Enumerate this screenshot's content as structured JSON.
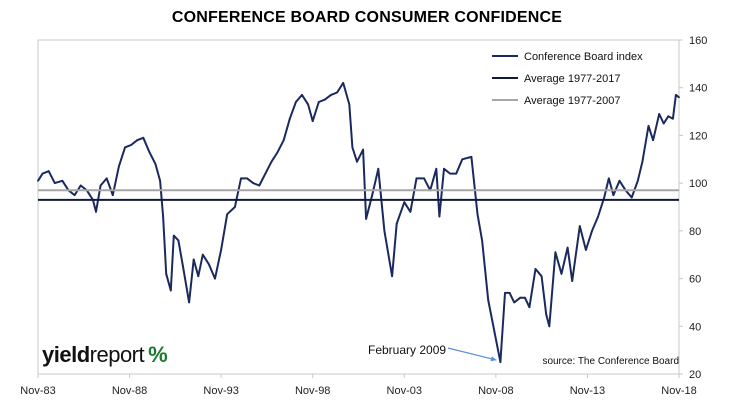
{
  "chart_data": {
    "type": "line",
    "title": "CONFERENCE BOARD CONSUMER CONFIDENCE",
    "ylim": [
      20,
      160
    ],
    "yticks": [
      20,
      40,
      60,
      80,
      100,
      120,
      140,
      160
    ],
    "y_axis_side": "right",
    "xlim": [
      "1983-11",
      "2018-11"
    ],
    "xticks": [
      "Nov-83",
      "Nov-88",
      "Nov-93",
      "Nov-98",
      "Nov-03",
      "Nov-08",
      "Nov-13",
      "Nov-18"
    ],
    "legend_position": "top-right",
    "grid": false,
    "series": [
      {
        "name": "Conference Board index",
        "color": "#1b2a5e",
        "points": [
          [
            "1983-11",
            101
          ],
          [
            "1984-02",
            104
          ],
          [
            "1984-06",
            105
          ],
          [
            "1984-10",
            100
          ],
          [
            "1985-03",
            101
          ],
          [
            "1985-07",
            97
          ],
          [
            "1985-11",
            95
          ],
          [
            "1986-03",
            99
          ],
          [
            "1986-07",
            97
          ],
          [
            "1986-11",
            93
          ],
          [
            "1987-01",
            88
          ],
          [
            "1987-04",
            99
          ],
          [
            "1987-08",
            102
          ],
          [
            "1987-12",
            95
          ],
          [
            "1988-04",
            107
          ],
          [
            "1988-08",
            115
          ],
          [
            "1988-12",
            116
          ],
          [
            "1989-04",
            118
          ],
          [
            "1989-08",
            119
          ],
          [
            "1989-12",
            113
          ],
          [
            "1990-04",
            108
          ],
          [
            "1990-07",
            101
          ],
          [
            "1990-09",
            86
          ],
          [
            "1990-11",
            62
          ],
          [
            "1991-02",
            55
          ],
          [
            "1991-04",
            78
          ],
          [
            "1991-07",
            76
          ],
          [
            "1991-10",
            65
          ],
          [
            "1992-02",
            50
          ],
          [
            "1992-05",
            68
          ],
          [
            "1992-08",
            61
          ],
          [
            "1992-11",
            70
          ],
          [
            "1993-03",
            66
          ],
          [
            "1993-07",
            60
          ],
          [
            "1993-11",
            72
          ],
          [
            "1994-03",
            87
          ],
          [
            "1994-08",
            90
          ],
          [
            "1994-12",
            102
          ],
          [
            "1995-04",
            102
          ],
          [
            "1995-08",
            100
          ],
          [
            "1995-12",
            99
          ],
          [
            "1996-04",
            104
          ],
          [
            "1996-08",
            109
          ],
          [
            "1996-12",
            113
          ],
          [
            "1997-04",
            118
          ],
          [
            "1997-08",
            127
          ],
          [
            "1997-12",
            134
          ],
          [
            "1998-04",
            137
          ],
          [
            "1998-08",
            133
          ],
          [
            "1998-11",
            126
          ],
          [
            "1999-03",
            134
          ],
          [
            "1999-07",
            135
          ],
          [
            "1999-11",
            137
          ],
          [
            "2000-03",
            138
          ],
          [
            "2000-07",
            142
          ],
          [
            "2000-11",
            133
          ],
          [
            "2001-01",
            115
          ],
          [
            "2001-04",
            109
          ],
          [
            "2001-08",
            114
          ],
          [
            "2001-10",
            85
          ],
          [
            "2002-02",
            95
          ],
          [
            "2002-06",
            106
          ],
          [
            "2002-10",
            80
          ],
          [
            "2003-03",
            61
          ],
          [
            "2003-06",
            83
          ],
          [
            "2003-11",
            92
          ],
          [
            "2004-03",
            88
          ],
          [
            "2004-07",
            102
          ],
          [
            "2004-12",
            102
          ],
          [
            "2005-04",
            97
          ],
          [
            "2005-08",
            106
          ],
          [
            "2005-10",
            86
          ],
          [
            "2006-01",
            106
          ],
          [
            "2006-05",
            104
          ],
          [
            "2006-09",
            104
          ],
          [
            "2007-01",
            110
          ],
          [
            "2007-07",
            111
          ],
          [
            "2007-11",
            87
          ],
          [
            "2008-02",
            76
          ],
          [
            "2008-06",
            51
          ],
          [
            "2008-10",
            38
          ],
          [
            "2009-02",
            25
          ],
          [
            "2009-05",
            54
          ],
          [
            "2009-08",
            54
          ],
          [
            "2009-11",
            50
          ],
          [
            "2010-03",
            52
          ],
          [
            "2010-06",
            52
          ],
          [
            "2010-09",
            48
          ],
          [
            "2011-01",
            64
          ],
          [
            "2011-05",
            61
          ],
          [
            "2011-08",
            45
          ],
          [
            "2011-10",
            40
          ],
          [
            "2012-02",
            71
          ],
          [
            "2012-06",
            62
          ],
          [
            "2012-10",
            73
          ],
          [
            "2013-01",
            59
          ],
          [
            "2013-06",
            82
          ],
          [
            "2013-10",
            72
          ],
          [
            "2014-02",
            80
          ],
          [
            "2014-06",
            86
          ],
          [
            "2014-10",
            94
          ],
          [
            "2015-01",
            102
          ],
          [
            "2015-04",
            95
          ],
          [
            "2015-08",
            101
          ],
          [
            "2015-12",
            97
          ],
          [
            "2016-04",
            94
          ],
          [
            "2016-08",
            101
          ],
          [
            "2016-11",
            109
          ],
          [
            "2017-03",
            124
          ],
          [
            "2017-06",
            118
          ],
          [
            "2017-10",
            129
          ],
          [
            "2018-01",
            125
          ],
          [
            "2018-04",
            128
          ],
          [
            "2018-07",
            127
          ],
          [
            "2018-09",
            137
          ],
          [
            "2018-11",
            136
          ]
        ]
      },
      {
        "name": "Average 1977-2017",
        "color": "#0f1a3c",
        "constant": 93
      },
      {
        "name": "Average 1977-2007",
        "color": "#a6a6a6",
        "constant": 97
      }
    ],
    "annotation": {
      "text": "February 2009",
      "x": "2009-02",
      "y": 25
    },
    "source": "source: The Conference Board"
  },
  "branding": {
    "logo_part1": "yield",
    "logo_part2": "report",
    "logo_symbol": "%",
    "logo_color": "#1a7a2e"
  }
}
